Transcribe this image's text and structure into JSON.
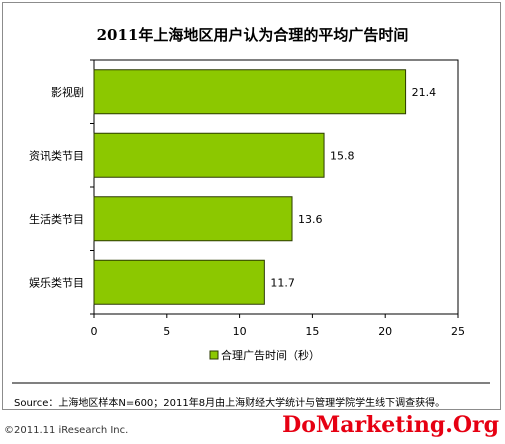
{
  "chart_data": {
    "type": "bar",
    "orientation": "horizontal",
    "title": "2011年上海地区用户认为合理的平均广告时间",
    "categories": [
      "影视剧",
      "资讯类节目",
      "生活类节目",
      "娱乐类节目"
    ],
    "values": [
      21.4,
      15.8,
      13.6,
      11.7
    ],
    "series": [
      {
        "name": "合理广告时间（秒）",
        "values": [
          21.4,
          15.8,
          13.6,
          11.7
        ]
      }
    ],
    "xlim": [
      0,
      25
    ],
    "xticks": [
      0,
      5,
      10,
      15,
      20,
      25
    ],
    "grid": false,
    "legend": "bottom",
    "bar_color": "#8cc800",
    "bar_stroke": "#2b3a00",
    "data_labels": [
      "21.4",
      "15.8",
      "13.6",
      "11.7"
    ]
  },
  "source": "Source：上海地区样本N=600；2011年8月由上海财经大学统计与管理学院学生线下调查获得。",
  "copyright": "©2011.11 iResearch Inc.",
  "watermark": "DoMarketing.Org"
}
